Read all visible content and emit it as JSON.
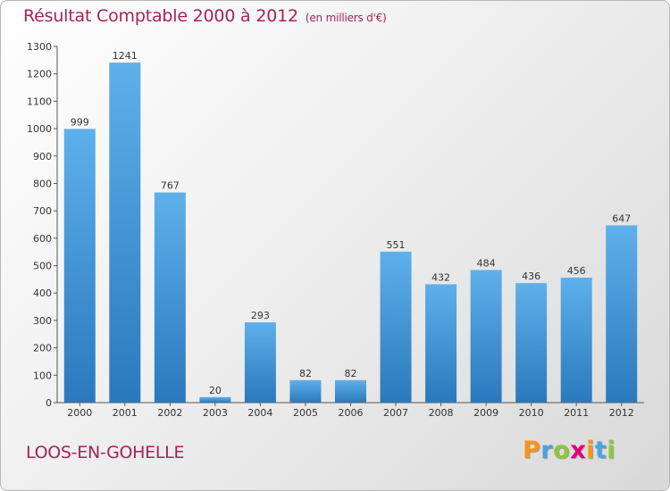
{
  "header": {
    "title": "Résultat Comptable 2000 à 2012",
    "subtitle": "(en milliers d'€)"
  },
  "footer": {
    "place": "LOOS-EN-GOHELLE",
    "logo_letters": [
      "P",
      "r",
      "o",
      "x",
      "i",
      "t",
      "i"
    ],
    "logo_colors": [
      "#f7941d",
      "#4aa3df",
      "#8dc63f",
      "#e2007a",
      "#f7941d",
      "#4aa3df",
      "#8dc63f"
    ]
  },
  "chart_data": {
    "type": "bar",
    "title": "Résultat Comptable 2000 à 2012",
    "subtitle": "(en milliers d'€)",
    "xlabel": "",
    "ylabel": "",
    "categories": [
      "2000",
      "2001",
      "2002",
      "2003",
      "2004",
      "2005",
      "2006",
      "2007",
      "2008",
      "2009",
      "2010",
      "2011",
      "2012"
    ],
    "values": [
      999,
      1241,
      767,
      20,
      293,
      82,
      82,
      551,
      432,
      484,
      436,
      456,
      647
    ],
    "ylim": [
      0,
      1300
    ],
    "yticks": [
      0,
      100,
      200,
      300,
      400,
      500,
      600,
      700,
      800,
      900,
      1000,
      1100,
      1200,
      1300
    ],
    "grid": false,
    "bar_color": "#3a8fd0"
  }
}
